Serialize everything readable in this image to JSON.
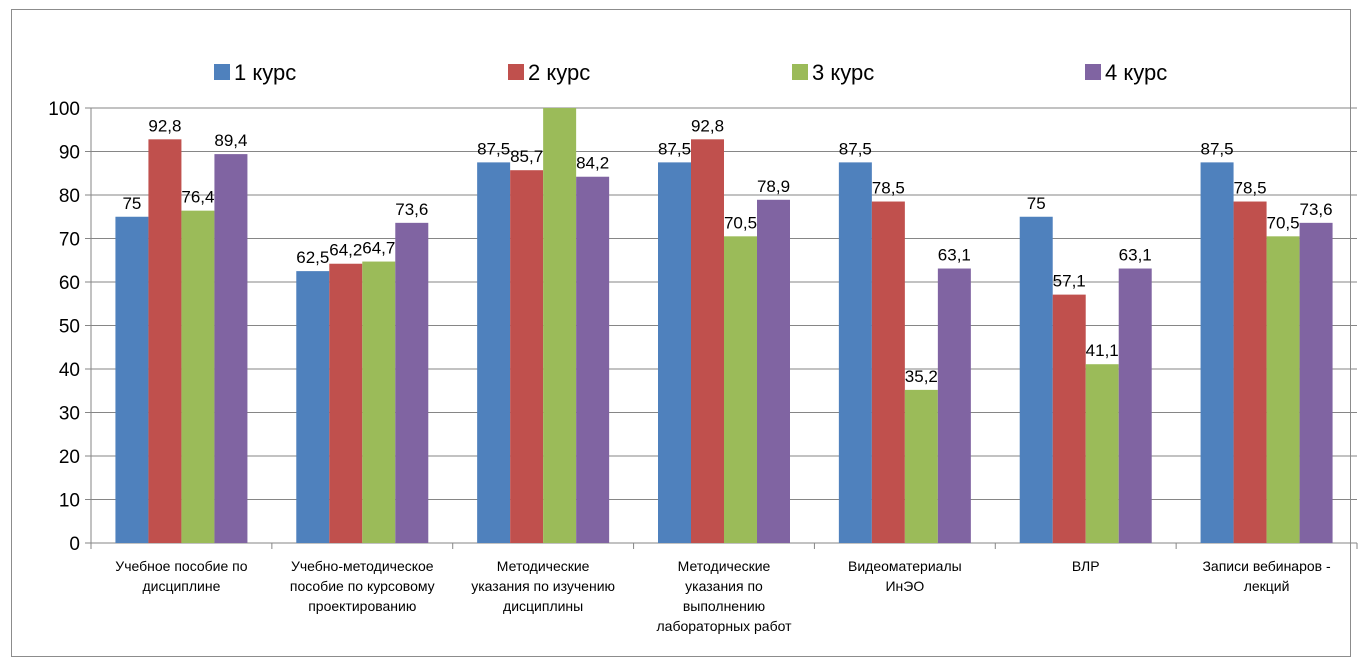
{
  "chart_data": {
    "type": "bar",
    "categories": [
      [
        "Учебное пособие по",
        "дисциплине"
      ],
      [
        "Учебно-методическое",
        "пособие по курсовому",
        "проектированию"
      ],
      [
        "Методические",
        "указания по изучению",
        "дисциплины"
      ],
      [
        "Методические",
        "указания по",
        "выполнению",
        "лабораторных работ"
      ],
      [
        "Видеоматериалы",
        "ИнЭО"
      ],
      [
        "ВЛР"
      ],
      [
        "Записи вебинаров -",
        "лекций"
      ]
    ],
    "series": [
      {
        "name": "1 курс",
        "color": "#4F81BD",
        "values": [
          75,
          62.5,
          87.5,
          87.5,
          87.5,
          75,
          87.5
        ],
        "labels": [
          "75",
          "62,5",
          "87,5",
          "87,5",
          "87,5",
          "75",
          "87,5"
        ]
      },
      {
        "name": "2 курс",
        "color": "#C0504D",
        "values": [
          92.8,
          64.2,
          85.7,
          92.8,
          78.5,
          57.1,
          78.5
        ],
        "labels": [
          "92,8",
          "64,2",
          "85,7",
          "92,8",
          "78,5",
          "57,1",
          "78,5"
        ]
      },
      {
        "name": "3 курс",
        "color": "#9BBB59",
        "values": [
          76.4,
          64.7,
          100,
          70.5,
          35.2,
          41.1,
          70.5
        ],
        "labels": [
          "76,4",
          "64,7",
          "",
          "70,5",
          "35,2",
          "41,1",
          "70,5"
        ]
      },
      {
        "name": "4 курс",
        "color": "#8064A2",
        "values": [
          89.4,
          73.6,
          84.2,
          78.9,
          63.1,
          63.1,
          73.6
        ],
        "labels": [
          "89,4",
          "73,6",
          "84,2",
          "78,9",
          "63,1",
          "63,1",
          "73,6"
        ]
      }
    ],
    "ylim": [
      0,
      100
    ],
    "yticks": [
      "0",
      "10",
      "20",
      "30",
      "40",
      "50",
      "60",
      "70",
      "80",
      "90",
      "100"
    ],
    "grid": true,
    "legend_position": "top"
  }
}
